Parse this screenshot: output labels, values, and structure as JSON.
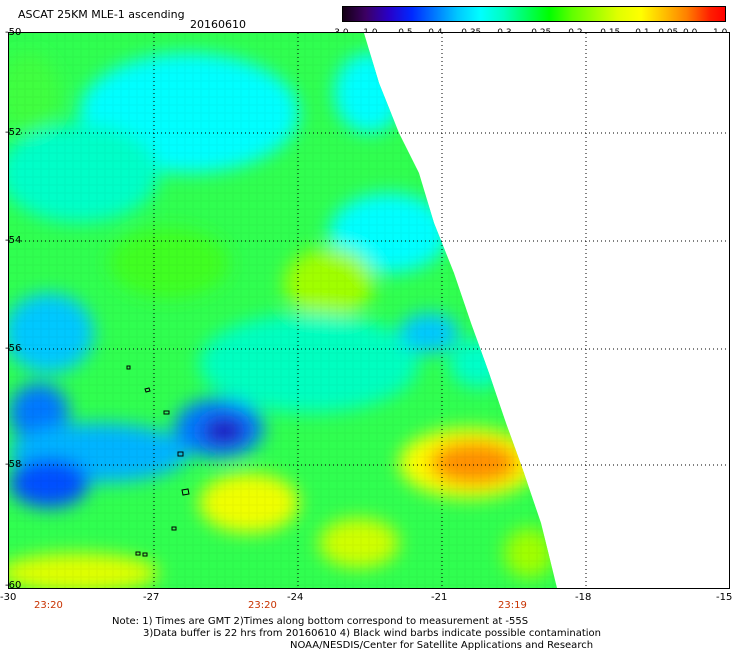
{
  "header": {
    "title": "ASCAT 25KM MLE-1 ascending",
    "date": "20160610"
  },
  "colorbar": {
    "ticks": [
      "-3.0",
      "-1.0",
      "-0.5",
      "-0.4",
      "-0.35",
      "-0.3",
      "-0.25",
      "-0.2",
      "-0.15",
      "-0.1",
      "-0.05",
      "0.0",
      "1.0"
    ]
  },
  "axes": {
    "lat_labels": [
      "-50",
      "-52",
      "-54",
      "-56",
      "-58",
      "-60"
    ],
    "lon_labels": [
      "-30",
      "-27",
      "-24",
      "-21",
      "-18",
      "-15"
    ]
  },
  "times": [
    "23:20",
    "23:20",
    "23:19"
  ],
  "notes": [
    "Note: 1) Times are GMT 2)Times along bottom correspond to measurement at -55S",
    "3)Data buffer is 22 hrs from 20160610 4) Black wind barbs indicate possible contamination",
    "NOAA/NESDIS/Center for Satellite Applications and Research"
  ]
}
